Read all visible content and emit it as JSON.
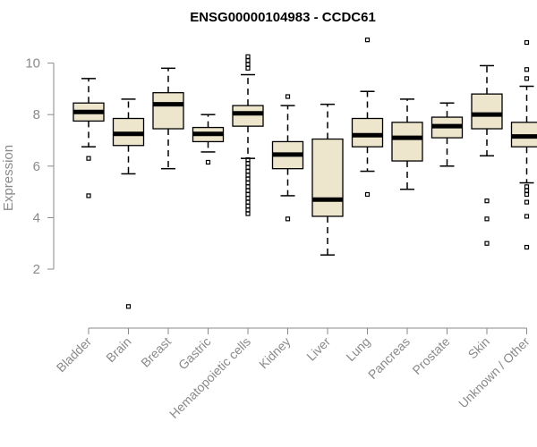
{
  "chart_data": {
    "type": "boxplot",
    "title": "ENSG00000104983 - CCDC61",
    "ylabel": "Expression",
    "xlabel": "",
    "ylim": [
      0.3,
      11.2
    ],
    "yticks": [
      2,
      4,
      6,
      8,
      10
    ],
    "box_fill": "#ede6cc",
    "median_color": "#000000",
    "axis_color": "#8a8a8a",
    "categories": [
      "Bladder",
      "Brain",
      "Breast",
      "Gastric",
      "Hematopoietic cells",
      "Kidney",
      "Liver",
      "Lung",
      "Pancreas",
      "Prostate",
      "Skin",
      "Unknown / Other"
    ],
    "boxes": [
      {
        "category": "Bladder",
        "whisker_low": 6.75,
        "q1": 7.75,
        "median": 8.1,
        "q3": 8.45,
        "whisker_high": 9.4,
        "outliers": [
          6.3,
          4.85
        ]
      },
      {
        "category": "Brain",
        "whisker_low": 5.7,
        "q1": 6.8,
        "median": 7.25,
        "q3": 7.85,
        "whisker_high": 8.6,
        "outliers": [
          0.55
        ]
      },
      {
        "category": "Breast",
        "whisker_low": 5.9,
        "q1": 7.45,
        "median": 8.4,
        "q3": 8.85,
        "whisker_high": 9.8,
        "outliers": []
      },
      {
        "category": "Gastric",
        "whisker_low": 6.55,
        "q1": 6.95,
        "median": 7.25,
        "q3": 7.5,
        "whisker_high": 8.0,
        "outliers": [
          6.15
        ]
      },
      {
        "category": "Hematopoietic cells",
        "whisker_low": 6.3,
        "q1": 7.55,
        "median": 8.05,
        "q3": 8.35,
        "whisker_high": 9.55,
        "outliers": [
          9.8,
          9.95,
          10.1,
          10.25,
          6.25,
          6.1,
          5.95,
          5.8,
          5.65,
          5.5,
          5.35,
          5.2,
          5.05,
          4.9,
          4.75,
          4.6,
          4.45,
          4.3,
          4.15
        ]
      },
      {
        "category": "Kidney",
        "whisker_low": 4.85,
        "q1": 5.9,
        "median": 6.45,
        "q3": 6.95,
        "whisker_high": 8.35,
        "outliers": [
          8.7,
          3.95
        ]
      },
      {
        "category": "Liver",
        "whisker_low": 2.55,
        "q1": 4.05,
        "median": 4.7,
        "q3": 7.05,
        "whisker_high": 8.4,
        "outliers": []
      },
      {
        "category": "Lung",
        "whisker_low": 5.8,
        "q1": 6.75,
        "median": 7.2,
        "q3": 7.85,
        "whisker_high": 8.9,
        "outliers": [
          10.9,
          4.9
        ]
      },
      {
        "category": "Pancreas",
        "whisker_low": 5.1,
        "q1": 6.2,
        "median": 7.1,
        "q3": 7.7,
        "whisker_high": 8.6,
        "outliers": []
      },
      {
        "category": "Prostate",
        "whisker_low": 6.0,
        "q1": 7.1,
        "median": 7.55,
        "q3": 7.9,
        "whisker_high": 8.45,
        "outliers": []
      },
      {
        "category": "Skin",
        "whisker_low": 6.4,
        "q1": 7.45,
        "median": 8.0,
        "q3": 8.8,
        "whisker_high": 9.9,
        "outliers": [
          4.65,
          3.95,
          3.0
        ]
      },
      {
        "category": "Unknown / Other",
        "whisker_low": 5.35,
        "q1": 6.75,
        "median": 7.15,
        "q3": 7.7,
        "whisker_high": 9.1,
        "outliers": [
          10.8,
          9.75,
          9.4,
          5.2,
          5.05,
          4.9,
          4.6,
          4.05,
          2.85
        ]
      }
    ]
  }
}
